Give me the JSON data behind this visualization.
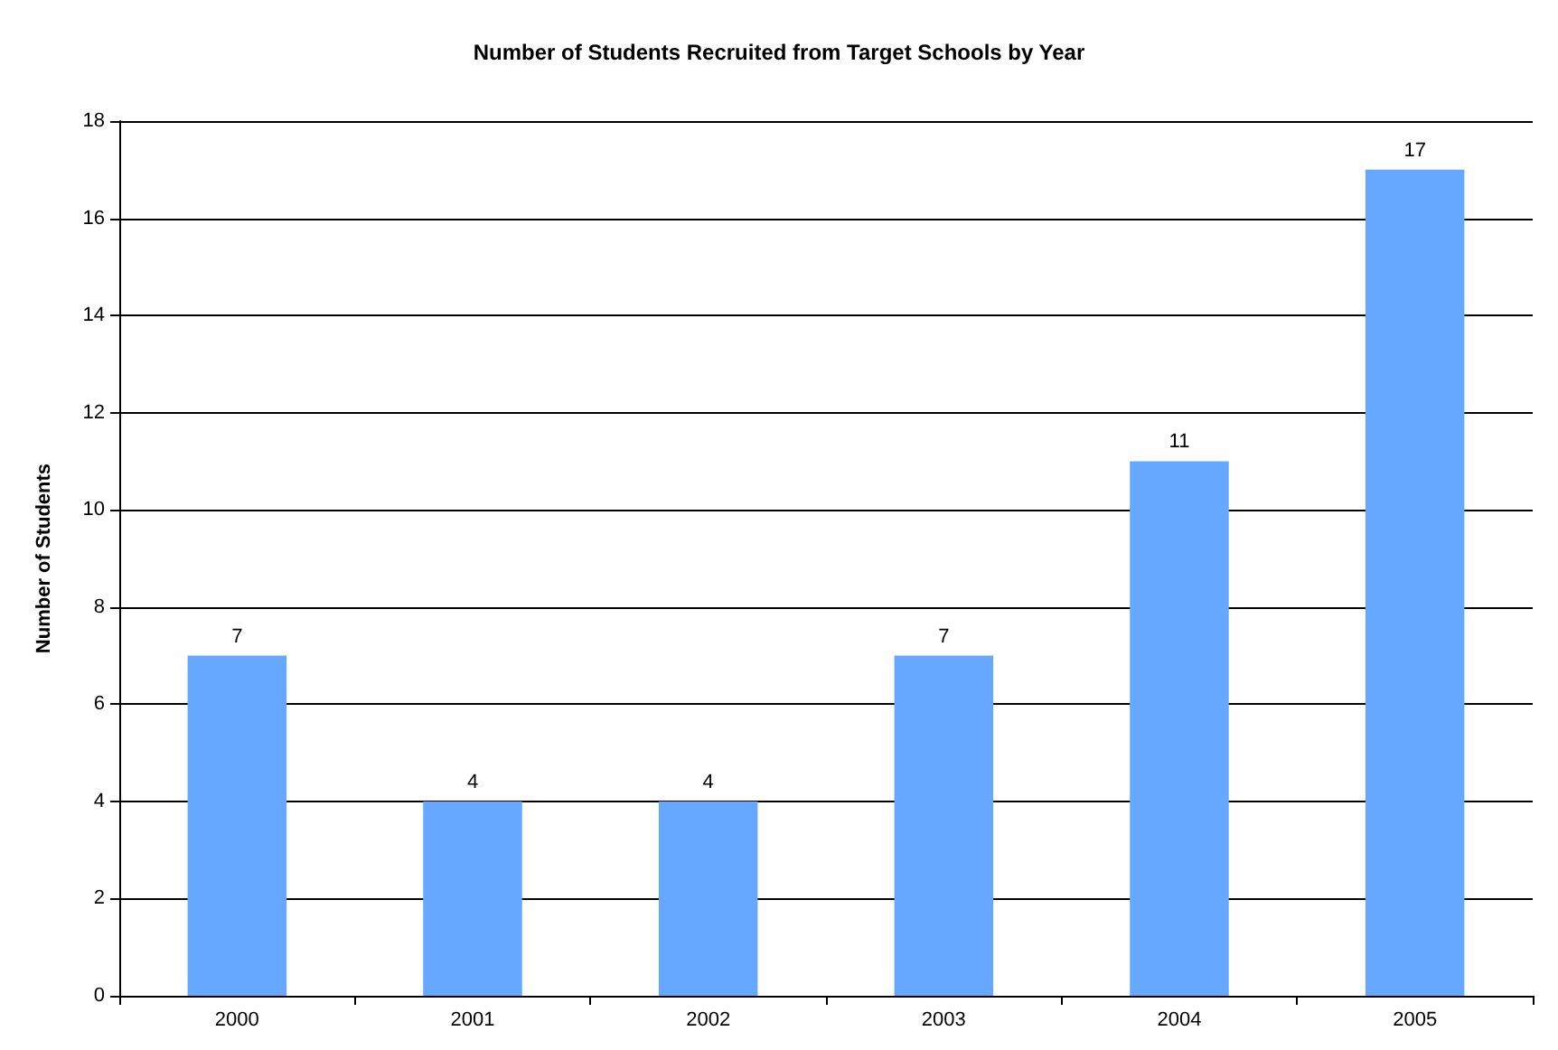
{
  "chart_data": {
    "type": "bar",
    "title": "Number of Students Recruited from Target Schools by Year",
    "ylabel": "Number of Students",
    "categories": [
      "2000",
      "2001",
      "2002",
      "2003",
      "2004",
      "2005"
    ],
    "values": [
      7,
      4,
      4,
      7,
      11,
      17
    ],
    "color": "#66a8ff",
    "ylim": [
      0,
      18
    ],
    "yticks": [
      0,
      2,
      4,
      6,
      8,
      10,
      12,
      14,
      16,
      18
    ],
    "grid": "y",
    "data_labels": true
  }
}
